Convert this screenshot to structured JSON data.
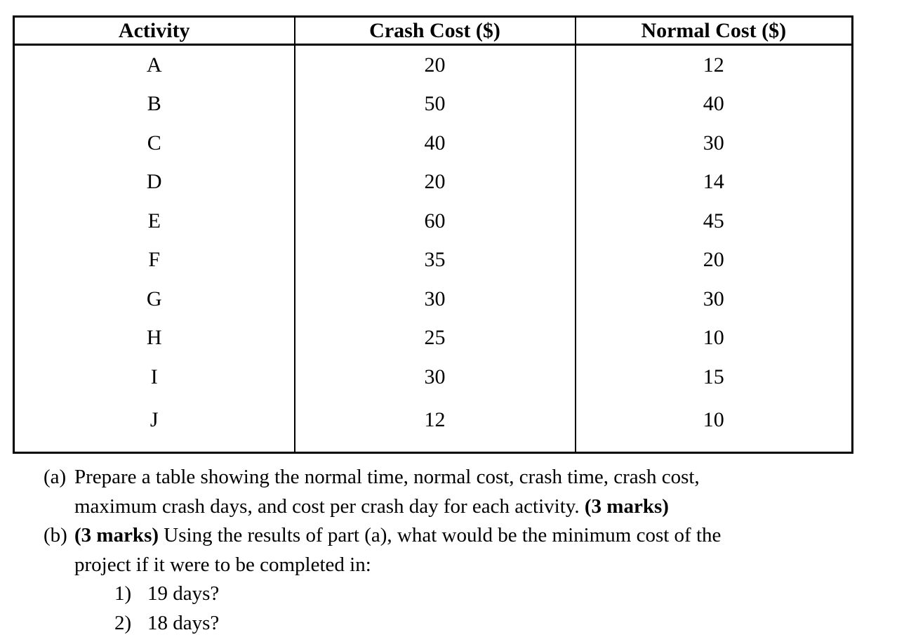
{
  "page": {
    "background_color": "#ffffff",
    "text_color": "#000000",
    "border_color": "#000000"
  },
  "table": {
    "headers": [
      "Activity",
      "Crash Cost ($)",
      "Normal Cost ($)"
    ],
    "rows": [
      {
        "activity": "A",
        "crash_cost": "20",
        "normal_cost": "12"
      },
      {
        "activity": "B",
        "crash_cost": "50",
        "normal_cost": "40"
      },
      {
        "activity": "C",
        "crash_cost": "40",
        "normal_cost": "30"
      },
      {
        "activity": "D",
        "crash_cost": "20",
        "normal_cost": "14"
      },
      {
        "activity": "E",
        "crash_cost": "60",
        "normal_cost": "45"
      },
      {
        "activity": "F",
        "crash_cost": "35",
        "normal_cost": "20"
      },
      {
        "activity": "G",
        "crash_cost": "30",
        "normal_cost": "30"
      },
      {
        "activity": "H",
        "crash_cost": "25",
        "normal_cost": "10"
      },
      {
        "activity": "I",
        "crash_cost": "30",
        "normal_cost": "15"
      },
      {
        "activity": "J",
        "crash_cost": "12",
        "normal_cost": "10"
      }
    ]
  },
  "questions": [
    {
      "marker": "(a)",
      "lines": [
        [
          {
            "text": "Prepare a table showing the normal time, normal cost, crash time, crash cost,",
            "bold": false
          }
        ],
        [
          {
            "text": "maximum crash days, and cost per crash day for each activity. ",
            "bold": false
          },
          {
            "text": "(3 marks)",
            "bold": true
          }
        ]
      ]
    },
    {
      "marker": "(b)",
      "lines": [
        [
          {
            "text": "(3 marks)",
            "bold": true
          },
          {
            "text": " Using the results of part (a), what would be the minimum cost of the",
            "bold": false
          }
        ],
        [
          {
            "text": "project if it were to be completed in:",
            "bold": false
          }
        ]
      ]
    }
  ],
  "sub_questions": [
    {
      "marker": "1)",
      "text": "19 days?"
    },
    {
      "marker": "2)",
      "text": "18 days?"
    }
  ]
}
